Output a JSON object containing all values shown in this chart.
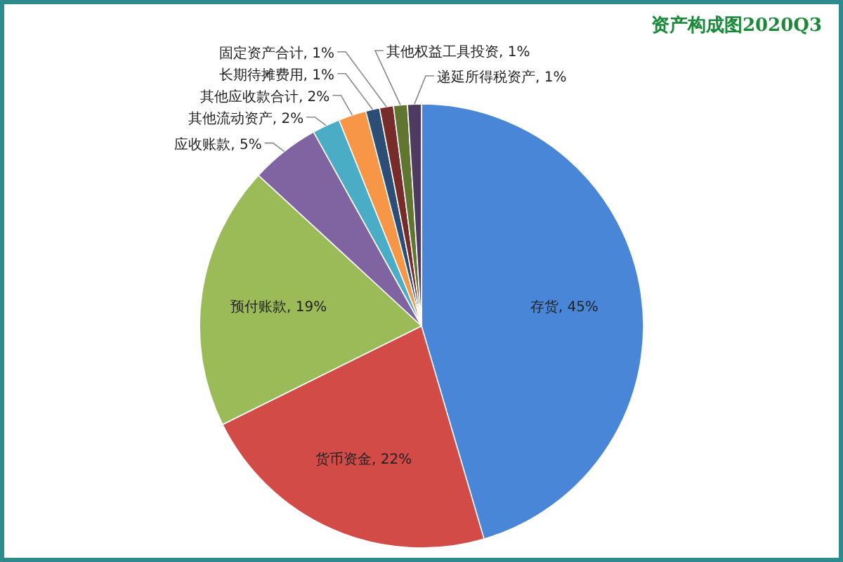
{
  "chart_data": {
    "type": "pie",
    "title": "资产构成图2020Q3",
    "categories": [
      "存货",
      "货币资金",
      "预付账款",
      "应收账款",
      "其他流动资产",
      "其他应收款合计",
      "长期待摊费用",
      "固定资产合计",
      "其他权益工具投资",
      "递延所得税资产"
    ],
    "values": [
      45,
      22,
      19,
      5,
      2,
      2,
      1,
      1,
      1,
      1
    ],
    "colors": [
      "#4a86d8",
      "#d24b47",
      "#9bbb59",
      "#8064a2",
      "#4bacc6",
      "#f79646",
      "#2c4d75",
      "#772c2a",
      "#5f7530",
      "#4d3b62"
    ],
    "value_labels": [
      ", 45%",
      ", 22%",
      ", 19%",
      ", 5%",
      ", 2%",
      ", 2%",
      ", 1%",
      ", 1%",
      ", 1%",
      ", 1%"
    ],
    "legend": false
  }
}
